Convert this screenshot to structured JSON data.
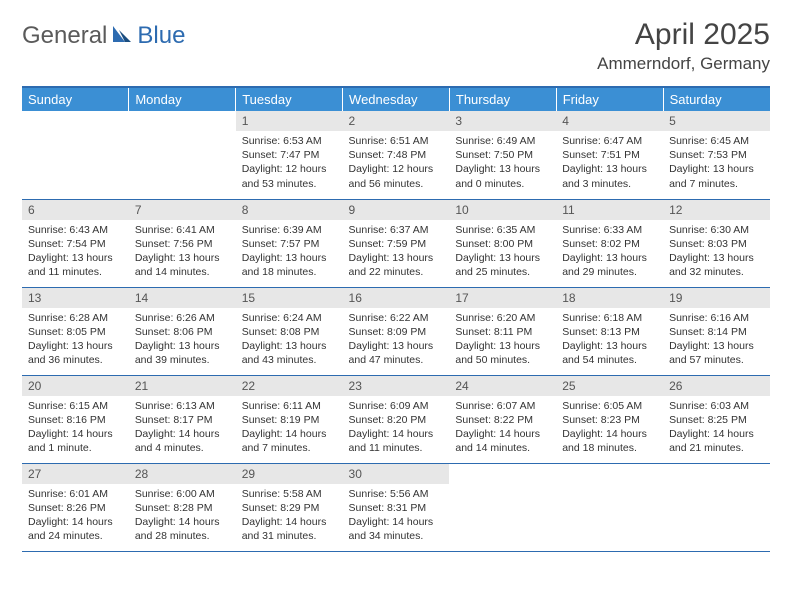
{
  "logo": {
    "part1": "General",
    "part2": "Blue"
  },
  "title": "April 2025",
  "location": "Ammerndorf, Germany",
  "weekdays": [
    "Sunday",
    "Monday",
    "Tuesday",
    "Wednesday",
    "Thursday",
    "Friday",
    "Saturday"
  ],
  "colors": {
    "header_bg": "#3b8fd4",
    "header_text": "#ffffff",
    "border": "#2d6bb0",
    "daynum_bg": "#e7e7e7",
    "logo_gray": "#5a5a5a",
    "logo_blue": "#2d6bb0"
  },
  "weeks": [
    [
      null,
      null,
      {
        "n": "1",
        "sr": "6:53 AM",
        "ss": "7:47 PM",
        "dl": "12 hours and 53 minutes."
      },
      {
        "n": "2",
        "sr": "6:51 AM",
        "ss": "7:48 PM",
        "dl": "12 hours and 56 minutes."
      },
      {
        "n": "3",
        "sr": "6:49 AM",
        "ss": "7:50 PM",
        "dl": "13 hours and 0 minutes."
      },
      {
        "n": "4",
        "sr": "6:47 AM",
        "ss": "7:51 PM",
        "dl": "13 hours and 3 minutes."
      },
      {
        "n": "5",
        "sr": "6:45 AM",
        "ss": "7:53 PM",
        "dl": "13 hours and 7 minutes."
      }
    ],
    [
      {
        "n": "6",
        "sr": "6:43 AM",
        "ss": "7:54 PM",
        "dl": "13 hours and 11 minutes."
      },
      {
        "n": "7",
        "sr": "6:41 AM",
        "ss": "7:56 PM",
        "dl": "13 hours and 14 minutes."
      },
      {
        "n": "8",
        "sr": "6:39 AM",
        "ss": "7:57 PM",
        "dl": "13 hours and 18 minutes."
      },
      {
        "n": "9",
        "sr": "6:37 AM",
        "ss": "7:59 PM",
        "dl": "13 hours and 22 minutes."
      },
      {
        "n": "10",
        "sr": "6:35 AM",
        "ss": "8:00 PM",
        "dl": "13 hours and 25 minutes."
      },
      {
        "n": "11",
        "sr": "6:33 AM",
        "ss": "8:02 PM",
        "dl": "13 hours and 29 minutes."
      },
      {
        "n": "12",
        "sr": "6:30 AM",
        "ss": "8:03 PM",
        "dl": "13 hours and 32 minutes."
      }
    ],
    [
      {
        "n": "13",
        "sr": "6:28 AM",
        "ss": "8:05 PM",
        "dl": "13 hours and 36 minutes."
      },
      {
        "n": "14",
        "sr": "6:26 AM",
        "ss": "8:06 PM",
        "dl": "13 hours and 39 minutes."
      },
      {
        "n": "15",
        "sr": "6:24 AM",
        "ss": "8:08 PM",
        "dl": "13 hours and 43 minutes."
      },
      {
        "n": "16",
        "sr": "6:22 AM",
        "ss": "8:09 PM",
        "dl": "13 hours and 47 minutes."
      },
      {
        "n": "17",
        "sr": "6:20 AM",
        "ss": "8:11 PM",
        "dl": "13 hours and 50 minutes."
      },
      {
        "n": "18",
        "sr": "6:18 AM",
        "ss": "8:13 PM",
        "dl": "13 hours and 54 minutes."
      },
      {
        "n": "19",
        "sr": "6:16 AM",
        "ss": "8:14 PM",
        "dl": "13 hours and 57 minutes."
      }
    ],
    [
      {
        "n": "20",
        "sr": "6:15 AM",
        "ss": "8:16 PM",
        "dl": "14 hours and 1 minute."
      },
      {
        "n": "21",
        "sr": "6:13 AM",
        "ss": "8:17 PM",
        "dl": "14 hours and 4 minutes."
      },
      {
        "n": "22",
        "sr": "6:11 AM",
        "ss": "8:19 PM",
        "dl": "14 hours and 7 minutes."
      },
      {
        "n": "23",
        "sr": "6:09 AM",
        "ss": "8:20 PM",
        "dl": "14 hours and 11 minutes."
      },
      {
        "n": "24",
        "sr": "6:07 AM",
        "ss": "8:22 PM",
        "dl": "14 hours and 14 minutes."
      },
      {
        "n": "25",
        "sr": "6:05 AM",
        "ss": "8:23 PM",
        "dl": "14 hours and 18 minutes."
      },
      {
        "n": "26",
        "sr": "6:03 AM",
        "ss": "8:25 PM",
        "dl": "14 hours and 21 minutes."
      }
    ],
    [
      {
        "n": "27",
        "sr": "6:01 AM",
        "ss": "8:26 PM",
        "dl": "14 hours and 24 minutes."
      },
      {
        "n": "28",
        "sr": "6:00 AM",
        "ss": "8:28 PM",
        "dl": "14 hours and 28 minutes."
      },
      {
        "n": "29",
        "sr": "5:58 AM",
        "ss": "8:29 PM",
        "dl": "14 hours and 31 minutes."
      },
      {
        "n": "30",
        "sr": "5:56 AM",
        "ss": "8:31 PM",
        "dl": "14 hours and 34 minutes."
      },
      null,
      null,
      null
    ]
  ],
  "labels": {
    "sunrise": "Sunrise: ",
    "sunset": "Sunset: ",
    "daylight": "Daylight: "
  }
}
